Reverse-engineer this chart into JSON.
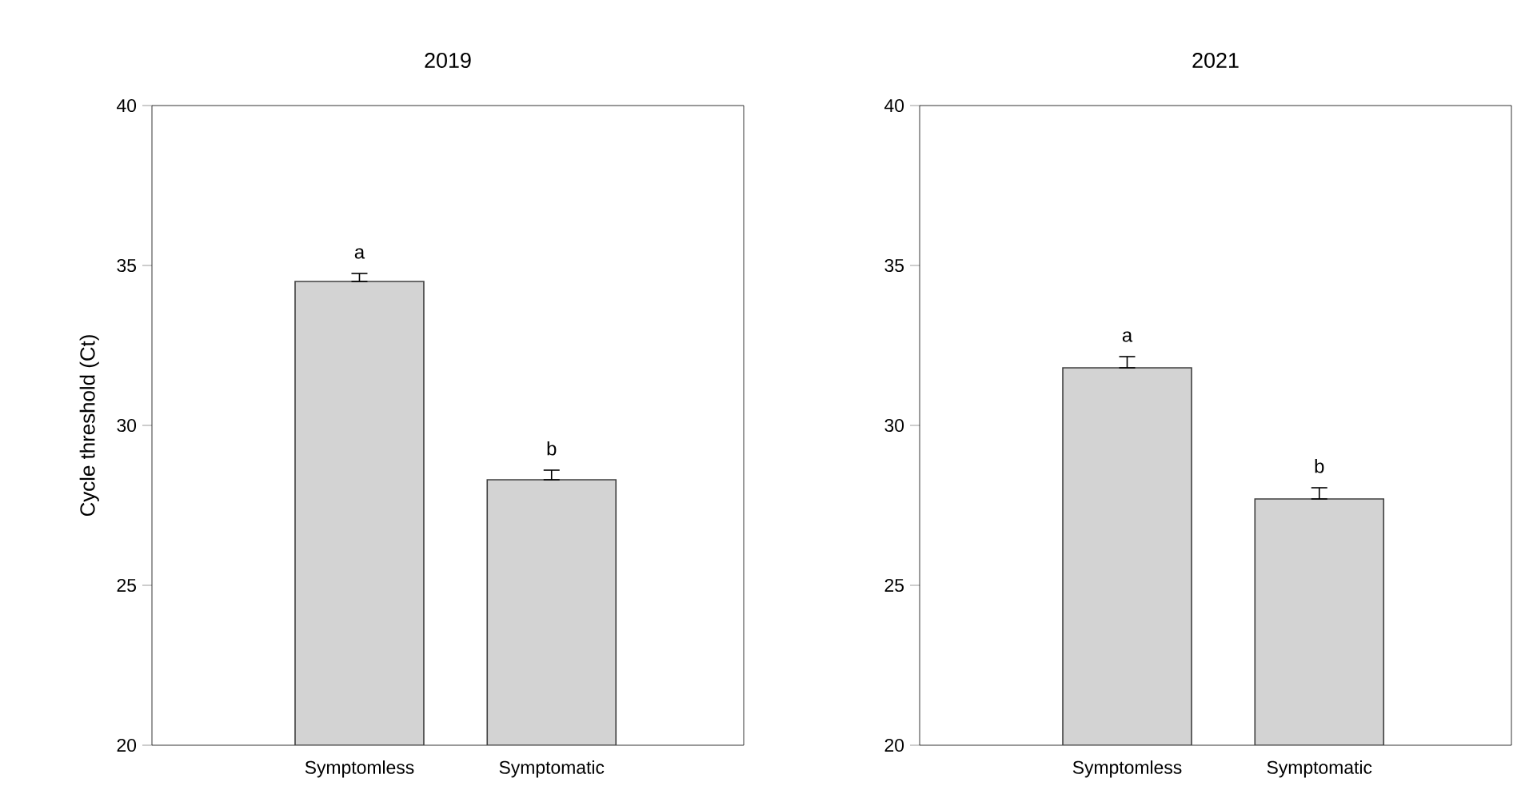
{
  "chart_data": [
    {
      "type": "bar",
      "title": "2019",
      "ylabel": "Cycle threshold (Ct)",
      "categories": [
        "Symptomless",
        "Symptomatic"
      ],
      "values": [
        34.5,
        28.3
      ],
      "errors": [
        [
          34.5,
          34.75
        ],
        [
          28.3,
          28.6
        ]
      ],
      "color": "#d3d3d3",
      "ylim": [
        20,
        40
      ],
      "yticks": [
        20,
        25,
        30,
        35,
        40
      ],
      "annotations": [
        "a",
        "b"
      ]
    },
    {
      "type": "bar",
      "title": "2021",
      "categories": [
        "Symptomless",
        "Symptomatic"
      ],
      "values": [
        31.8,
        27.7
      ],
      "errors": [
        [
          31.8,
          32.15
        ],
        [
          27.7,
          28.05
        ]
      ],
      "color": "#d3d3d3",
      "ylim": [
        20,
        40
      ],
      "yticks": [
        20,
        25,
        30,
        35,
        40
      ],
      "annotations": [
        "a",
        "b"
      ]
    }
  ]
}
